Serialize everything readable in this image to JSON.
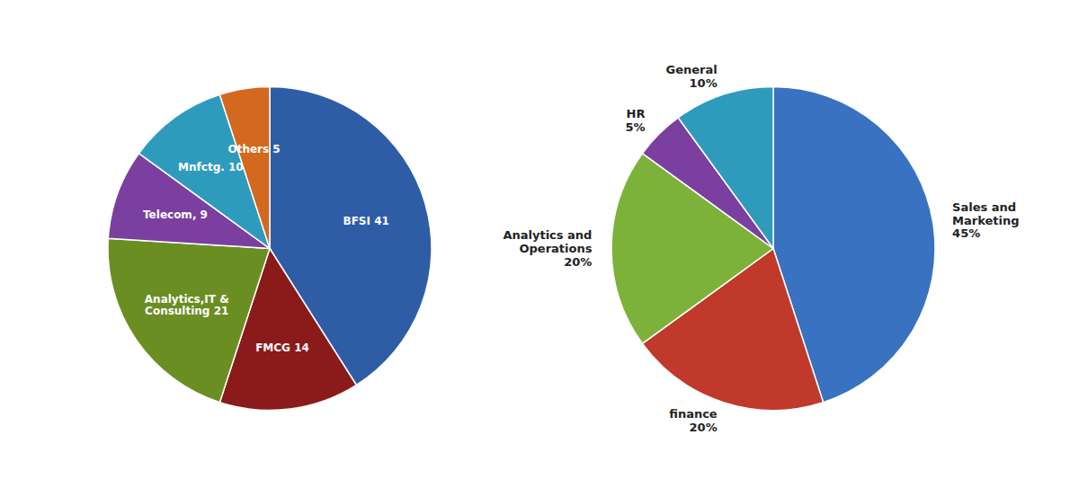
{
  "chart_data": [
    {
      "type": "pie",
      "categories": [
        "BFSI 41",
        "FMCG 14",
        "Analytics,IT &\nConsulting 21",
        "Telecom, 9",
        "Mnfctg. 10",
        "Others 5"
      ],
      "values": [
        41,
        14,
        21,
        9,
        10,
        5
      ],
      "colors": [
        "#2E5DA6",
        "#8B1A1A",
        "#6B8E23",
        "#7B3FA0",
        "#2E9BBD",
        "#D2691E"
      ]
    },
    {
      "type": "pie",
      "categories": [
        "Sales and\nMarketing\n45%",
        "finance\n20%",
        "Analytics and\nOperations\n20%",
        "HR\n5%",
        "General\n10%"
      ],
      "values": [
        45,
        20,
        20,
        5,
        10
      ],
      "colors": [
        "#3872C0",
        "#C0392B",
        "#7DB23A",
        "#7B3FA0",
        "#2E9BBD"
      ]
    }
  ]
}
